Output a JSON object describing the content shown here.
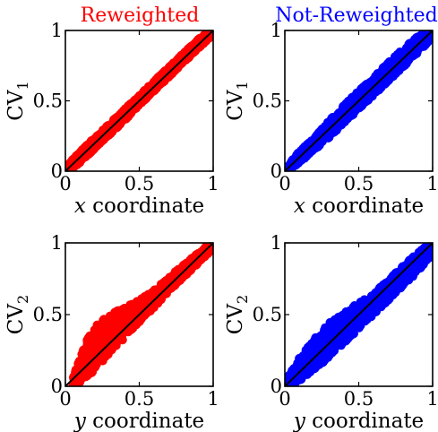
{
  "chart_data": {
    "type": "scatter",
    "column_titles": [
      {
        "text": "Reweighted",
        "color": "#ff0000"
      },
      {
        "text": "Not-Reweighted",
        "color": "#0000ff"
      }
    ],
    "panels": [
      {
        "id": "top-left",
        "title": "Reweighted",
        "color": "#ff0000",
        "xlabel_var": "x",
        "xlabel_rest": " coordinate",
        "ylabel_base": "CV",
        "ylabel_sub": "1",
        "xlim": [
          0,
          1
        ],
        "ylim": [
          0,
          1
        ],
        "xticks": [
          "0",
          "0.5",
          "1"
        ],
        "yticks": [
          "0",
          "0.5",
          "1"
        ],
        "band": {
          "x": [
            0.02,
            0.1,
            0.2,
            0.3,
            0.4,
            0.5,
            0.6,
            0.7,
            0.8,
            0.9,
            0.98
          ],
          "lo": [
            0.0,
            0.06,
            0.16,
            0.26,
            0.36,
            0.47,
            0.57,
            0.67,
            0.77,
            0.87,
            0.95
          ],
          "hi": [
            0.05,
            0.14,
            0.24,
            0.34,
            0.44,
            0.54,
            0.64,
            0.74,
            0.84,
            0.94,
            1.0
          ]
        },
        "diagonal": [
          [
            0,
            0
          ],
          [
            1,
            1
          ]
        ]
      },
      {
        "id": "top-right",
        "title": "Not-Reweighted",
        "color": "#0000ff",
        "xlabel_var": "x",
        "xlabel_rest": " coordinate",
        "ylabel_base": "CV",
        "ylabel_sub": "1",
        "xlim": [
          0,
          1
        ],
        "ylim": [
          0,
          1
        ],
        "xticks": [
          "0",
          "0.5",
          "1"
        ],
        "yticks": [
          "0",
          "0.5",
          "1"
        ],
        "band": {
          "x": [
            0.02,
            0.1,
            0.2,
            0.3,
            0.4,
            0.5,
            0.6,
            0.7,
            0.8,
            0.9,
            0.98
          ],
          "lo": [
            0.0,
            0.06,
            0.15,
            0.24,
            0.34,
            0.44,
            0.54,
            0.64,
            0.74,
            0.84,
            0.93
          ],
          "hi": [
            0.05,
            0.14,
            0.24,
            0.36,
            0.47,
            0.57,
            0.67,
            0.77,
            0.87,
            0.96,
            1.0
          ]
        },
        "diagonal": [
          [
            0,
            0
          ],
          [
            1,
            1
          ]
        ]
      },
      {
        "id": "bottom-left",
        "title": "Reweighted",
        "color": "#ff0000",
        "xlabel_var": "y",
        "xlabel_rest": " coordinate",
        "ylabel_base": "CV",
        "ylabel_sub": "2",
        "xlim": [
          0,
          1
        ],
        "ylim": [
          0,
          1
        ],
        "xticks": [
          "0",
          "0.5",
          "1"
        ],
        "yticks": [
          "0",
          "0.5",
          "1"
        ],
        "band": {
          "x": [
            0.05,
            0.1,
            0.15,
            0.2,
            0.3,
            0.4,
            0.5,
            0.6,
            0.7,
            0.8,
            0.9,
            0.98
          ],
          "lo": [
            0.0,
            0.02,
            0.06,
            0.12,
            0.22,
            0.34,
            0.45,
            0.55,
            0.66,
            0.76,
            0.86,
            0.94
          ],
          "hi": [
            0.06,
            0.2,
            0.33,
            0.42,
            0.5,
            0.55,
            0.6,
            0.67,
            0.76,
            0.85,
            0.93,
            1.0
          ]
        },
        "diagonal": [
          [
            0,
            0
          ],
          [
            1,
            1
          ]
        ]
      },
      {
        "id": "bottom-right",
        "title": "Not-Reweighted",
        "color": "#0000ff",
        "xlabel_var": "y",
        "xlabel_rest": " coordinate",
        "ylabel_base": "CV",
        "ylabel_sub": "2",
        "xlim": [
          0,
          1
        ],
        "ylim": [
          0,
          1
        ],
        "xticks": [
          "0",
          "0.5",
          "1"
        ],
        "yticks": [
          "0",
          "0.5",
          "1"
        ],
        "band": {
          "x": [
            0.02,
            0.1,
            0.2,
            0.3,
            0.4,
            0.5,
            0.6,
            0.7,
            0.8,
            0.9,
            0.98
          ],
          "lo": [
            0.0,
            0.04,
            0.12,
            0.2,
            0.3,
            0.4,
            0.5,
            0.6,
            0.7,
            0.8,
            0.9
          ],
          "hi": [
            0.06,
            0.2,
            0.33,
            0.44,
            0.52,
            0.58,
            0.65,
            0.74,
            0.84,
            0.93,
            1.0
          ]
        },
        "diagonal": [
          [
            0,
            0
          ],
          [
            1,
            1
          ]
        ]
      }
    ]
  }
}
